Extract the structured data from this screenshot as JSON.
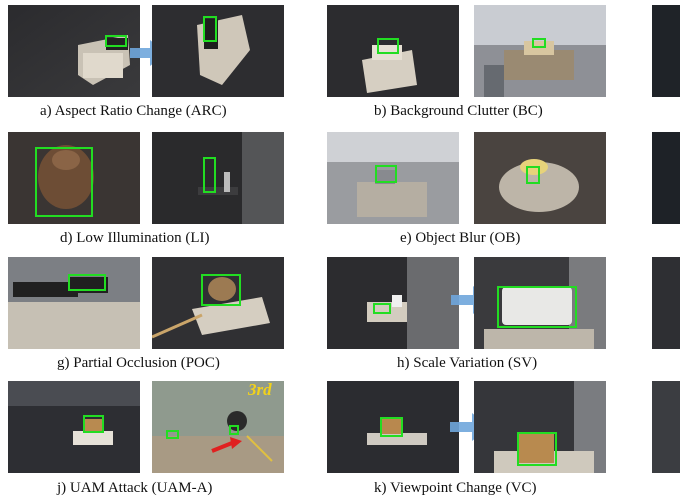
{
  "captions": {
    "a": "a) Aspect Ratio Change (ARC)",
    "b": "b) Background Clutter (BC)",
    "d": "d) Low Illumination (LI)",
    "e": "e) Object Blur (OB)",
    "g": "g) Partial Occlusion (POC)",
    "h": "h) Scale Variation (SV)",
    "j": "j) UAM Attack (UAM-A)",
    "k": "k) Viewpoint Change (VC)"
  },
  "annotations": {
    "third": "3rd"
  },
  "colors": {
    "bbox": "#22dd22",
    "arrow": "#6fa6dc",
    "attack_arrow": "#e02020"
  }
}
